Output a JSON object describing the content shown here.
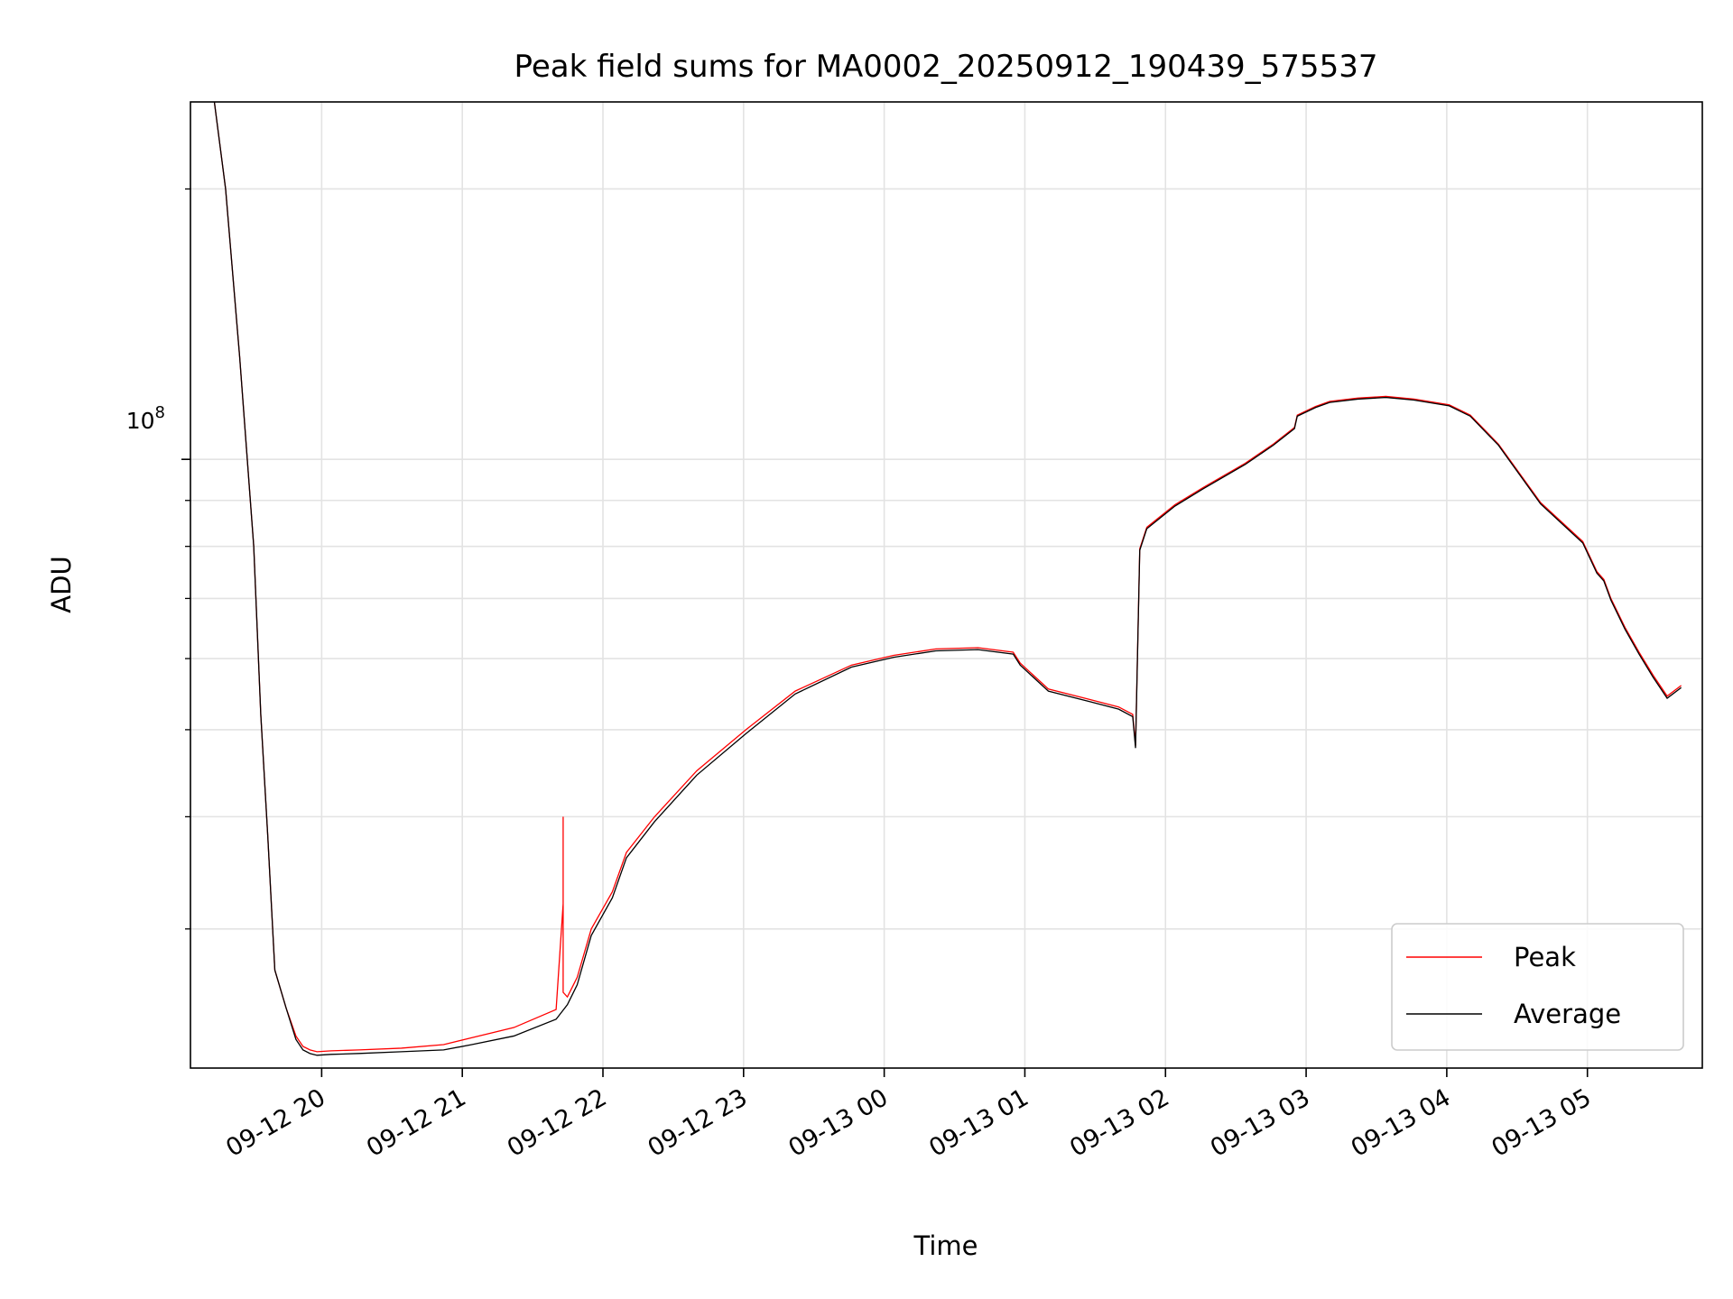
{
  "chart_data": {
    "type": "line",
    "title": "Peak field sums for MA0002_20250912_190439_575537",
    "xlabel": "Time",
    "ylabel": "ADU",
    "yscale": "log",
    "x_unit": "hours since 09-12 19:04",
    "xlim": [
      0,
      10.75
    ],
    "ylim": [
      21000000,
      250000000
    ],
    "grid": true,
    "legend_position": "lower-right",
    "y_tick_label": {
      "base": "10",
      "exponent": "8",
      "value": 100000000
    },
    "x_ticks": [
      {
        "label": "09-12 20",
        "x": 0.933
      },
      {
        "label": "09-12 21",
        "x": 1.933
      },
      {
        "label": "09-12 22",
        "x": 2.933
      },
      {
        "label": "09-12 23",
        "x": 3.933
      },
      {
        "label": "09-13 00",
        "x": 4.933
      },
      {
        "label": "09-13 01",
        "x": 5.933
      },
      {
        "label": "09-13 02",
        "x": 6.933
      },
      {
        "label": "09-13 03",
        "x": 7.933
      },
      {
        "label": "09-13 04",
        "x": 8.933
      },
      {
        "label": "09-13 05",
        "x": 9.933
      }
    ],
    "series": [
      {
        "name": "Peak",
        "color": "#ff0000",
        "x": [
          0.17,
          0.25,
          0.35,
          0.45,
          0.5,
          0.55,
          0.6,
          0.68,
          0.75,
          0.8,
          0.85,
          0.9,
          1.0,
          1.2,
          1.5,
          1.8,
          2.0,
          2.3,
          2.6,
          2.65,
          2.65,
          2.65,
          2.68,
          2.75,
          2.85,
          3.0,
          3.1,
          3.3,
          3.6,
          3.95,
          4.3,
          4.7,
          5.0,
          5.3,
          5.6,
          5.85,
          5.9,
          6.1,
          6.4,
          6.6,
          6.7,
          6.72,
          6.75,
          6.8,
          7.0,
          7.2,
          7.5,
          7.7,
          7.85,
          7.87,
          8.0,
          8.1,
          8.3,
          8.5,
          8.7,
          8.95,
          9.1,
          9.3,
          9.6,
          9.9,
          10.0,
          10.05,
          10.1,
          10.2,
          10.3,
          10.4,
          10.5,
          10.6
        ],
        "y": [
          250000000,
          200000000,
          130000000,
          80000000,
          52000000,
          38000000,
          27000000,
          24500000,
          22800000,
          22200000,
          22000000,
          21900000,
          21950000,
          22000000,
          22100000,
          22300000,
          22700000,
          23300000,
          24400000,
          32000000,
          40000000,
          25500000,
          25200000,
          26500000,
          30000000,
          33000000,
          36500000,
          40000000,
          45000000,
          50000000,
          55200000,
          59000000,
          60500000,
          61500000,
          61700000,
          61000000,
          59300000,
          55500000,
          54000000,
          53000000,
          52000000,
          48000000,
          79500000,
          84000000,
          89000000,
          93000000,
          99000000,
          104000000,
          108500000,
          112000000,
          114500000,
          116000000,
          117000000,
          117500000,
          116700000,
          115000000,
          112000000,
          104000000,
          89500000,
          81000000,
          75000000,
          73500000,
          70000000,
          65000000,
          61000000,
          57500000,
          54500000,
          56000000
        ]
      },
      {
        "name": "Average",
        "color": "#000000",
        "x": [
          0.17,
          0.25,
          0.35,
          0.45,
          0.5,
          0.55,
          0.6,
          0.68,
          0.75,
          0.8,
          0.85,
          0.9,
          1.0,
          1.2,
          1.5,
          1.8,
          2.0,
          2.3,
          2.6,
          2.68,
          2.75,
          2.85,
          3.0,
          3.1,
          3.3,
          3.6,
          3.95,
          4.3,
          4.7,
          5.0,
          5.3,
          5.6,
          5.85,
          5.9,
          6.1,
          6.4,
          6.6,
          6.7,
          6.72,
          6.75,
          6.8,
          7.0,
          7.2,
          7.5,
          7.7,
          7.85,
          7.87,
          8.0,
          8.1,
          8.3,
          8.5,
          8.7,
          8.95,
          9.1,
          9.3,
          9.6,
          9.9,
          10.0,
          10.05,
          10.1,
          10.2,
          10.3,
          10.4,
          10.5,
          10.6
        ],
        "y": [
          250000000,
          200000000,
          130000000,
          80000000,
          52000000,
          38000000,
          27000000,
          24500000,
          22600000,
          22000000,
          21800000,
          21700000,
          21750000,
          21800000,
          21900000,
          22000000,
          22300000,
          22800000,
          23800000,
          24700000,
          26000000,
          29500000,
          32500000,
          36000000,
          39500000,
          44500000,
          49500000,
          54800000,
          58700000,
          60200000,
          61200000,
          61400000,
          60700000,
          59000000,
          55200000,
          53700000,
          52700000,
          51700000,
          47700000,
          79200000,
          83700000,
          88700000,
          92700000,
          98700000,
          103700000,
          108200000,
          111700000,
          114200000,
          115700000,
          116700000,
          117200000,
          116400000,
          114700000,
          111700000,
          103700000,
          89200000,
          80700000,
          74700000,
          73200000,
          69700000,
          64700000,
          60700000,
          57200000,
          54200000,
          55700000
        ]
      }
    ]
  }
}
